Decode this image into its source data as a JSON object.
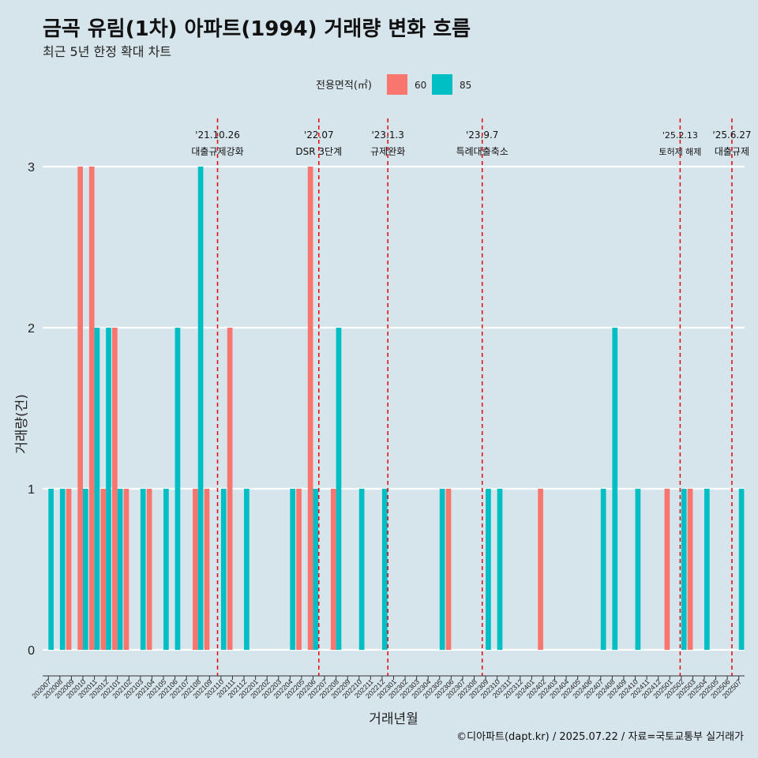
{
  "title": "금곡 유림(1차) 아파트(1994) 거래량 변화 흐름",
  "subtitle": "최근 5년 한정 확대 차트",
  "caption": "©디아파트(dapt.kr) / 2025.07.22 / 자료=국토교통부 실거래가",
  "colors": {
    "s60": "#f8766d",
    "s85": "#00bfc4",
    "vline": "#e8000b",
    "bg": "#d6e4eb",
    "grid": "#ffffff"
  },
  "chart_data": {
    "type": "bar",
    "xlabel": "거래년월",
    "ylabel": "거래량(건)",
    "ylim": [
      0,
      3
    ],
    "yticks": [
      0,
      1,
      2,
      3
    ],
    "grid": true,
    "legend": {
      "title": "전용면적(㎡)",
      "position": "top"
    },
    "categories": [
      "202007",
      "202008",
      "202009",
      "202010",
      "202011",
      "202012",
      "202101",
      "202102",
      "202103",
      "202104",
      "202105",
      "202106",
      "202107",
      "202108",
      "202109",
      "202110",
      "202111",
      "202112",
      "202201",
      "202202",
      "202203",
      "202204",
      "202205",
      "202206",
      "202207",
      "202208",
      "202209",
      "202210",
      "202211",
      "202212",
      "202301",
      "202302",
      "202303",
      "202304",
      "202305",
      "202306",
      "202307",
      "202308",
      "202309",
      "202310",
      "202311",
      "202312",
      "202401",
      "202402",
      "202403",
      "202404",
      "202405",
      "202406",
      "202407",
      "202408",
      "202409",
      "202410",
      "202411",
      "202412",
      "202501",
      "202502",
      "202503",
      "202504",
      "202505",
      "202506",
      "202507"
    ],
    "series": [
      {
        "name": "60",
        "values": [
          0,
          0,
          1,
          3,
          3,
          1,
          2,
          1,
          0,
          1,
          0,
          0,
          0,
          1,
          1,
          0,
          2,
          0,
          0,
          0,
          0,
          0,
          1,
          3,
          0,
          1,
          0,
          0,
          0,
          0,
          0,
          0,
          0,
          0,
          0,
          1,
          0,
          0,
          0,
          0,
          0,
          0,
          0,
          1,
          0,
          0,
          0,
          0,
          0,
          0,
          0,
          0,
          0,
          0,
          1,
          0,
          1,
          0,
          0,
          0,
          0
        ]
      },
      {
        "name": "85",
        "values": [
          1,
          1,
          0,
          1,
          2,
          2,
          1,
          0,
          1,
          0,
          1,
          2,
          0,
          3,
          0,
          1,
          0,
          1,
          0,
          0,
          0,
          1,
          0,
          1,
          0,
          2,
          0,
          1,
          0,
          1,
          0,
          0,
          0,
          0,
          1,
          0,
          0,
          0,
          1,
          1,
          0,
          0,
          0,
          0,
          0,
          0,
          0,
          0,
          1,
          2,
          0,
          1,
          0,
          0,
          0,
          1,
          0,
          1,
          0,
          0,
          1
        ]
      }
    ],
    "events": [
      {
        "date": "'21.10.26",
        "label": "대출규제강화",
        "at": "202110",
        "offset": 0.2
      },
      {
        "date": "'22.07",
        "label": "DSR 3단계",
        "at": "202207",
        "offset": 0
      },
      {
        "date": "'23.1.3",
        "label": "규제완화",
        "at": "202301",
        "offset": 0
      },
      {
        "date": "'23.9.7",
        "label": "특례대출축소",
        "at": "202309",
        "offset": 0.2
      },
      {
        "date": "'25.2.13",
        "label": "토허제 해제",
        "at": "202502",
        "offset": 0.4
      },
      {
        "date": "'25.6.27",
        "label": "대출규제",
        "at": "202506",
        "offset": 0.9
      }
    ]
  }
}
